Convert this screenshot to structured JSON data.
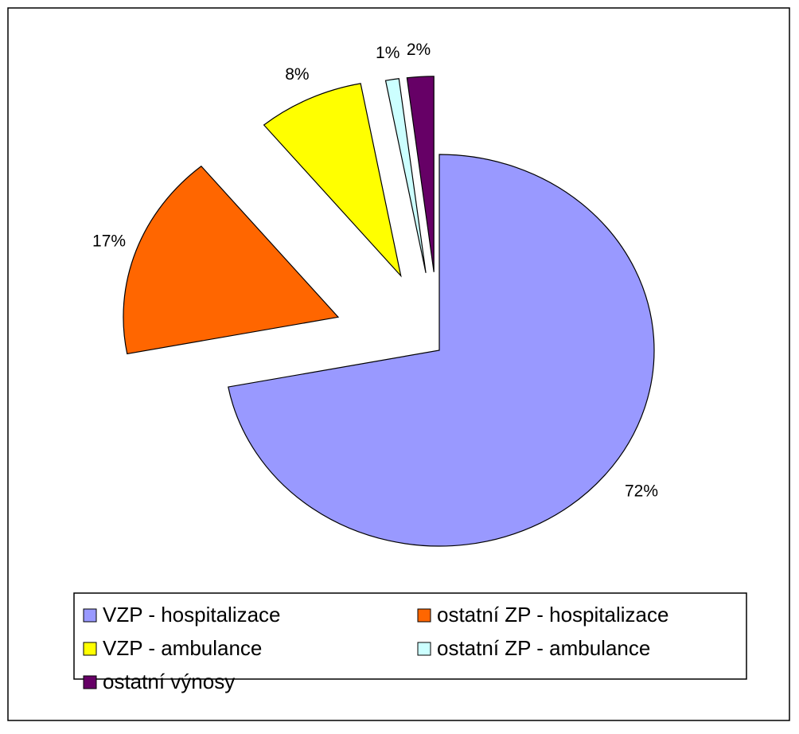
{
  "chart_data": {
    "type": "pie",
    "categories": [
      "VZP -  hospitalizace",
      "ostatní ZP - hospitalizace",
      "VZP -  ambulance",
      "ostatní ZP - ambulance",
      "ostatní výnosy"
    ],
    "values": [
      72,
      17,
      8,
      1,
      2
    ],
    "value_labels": [
      "72%",
      "17%",
      "8%",
      "1%",
      "2%"
    ],
    "colors": [
      "#9999ff",
      "#ff6600",
      "#ffff00",
      "#ccffff",
      "#660066"
    ],
    "legend": "bottom"
  }
}
